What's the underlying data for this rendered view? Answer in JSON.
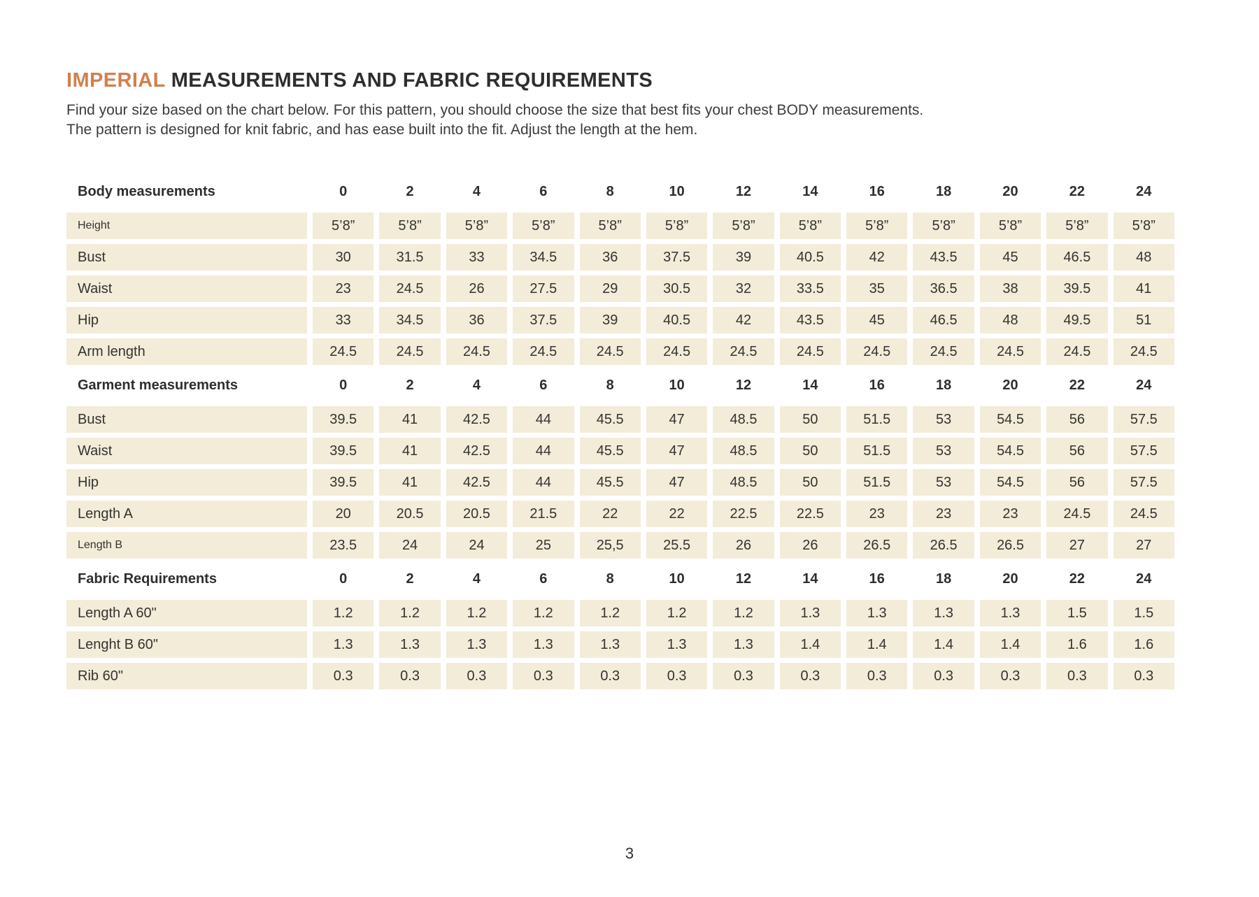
{
  "page": {
    "title_accent": "IMPERIAL",
    "title_rest": " MEASUREMENTS AND FABRIC REQUIREMENTS",
    "intro_line1": "Find your size based on the chart below. For this pattern, you should choose the size that best fits your chest BODY measurements.",
    "intro_line2": "The pattern is designed for knit fabric, and has ease built into the fit. Adjust the length at the hem.",
    "page_number": "3"
  },
  "colors": {
    "accent": "#d1804f",
    "cell_background": "#f3ecd9",
    "text": "#2f2e2c"
  },
  "sizes": [
    "0",
    "2",
    "4",
    "6",
    "8",
    "10",
    "12",
    "14",
    "16",
    "18",
    "20",
    "22",
    "24"
  ],
  "sections": [
    {
      "header": "Body measurements",
      "rows": [
        {
          "label": "Height",
          "small": true,
          "values": [
            "5’8”",
            "5’8”",
            "5’8”",
            "5’8”",
            "5’8”",
            "5’8”",
            "5’8”",
            "5’8”",
            "5’8”",
            "5’8”",
            "5’8”",
            "5’8”",
            "5’8”"
          ]
        },
        {
          "label": "Bust",
          "values": [
            "30",
            "31.5",
            "33",
            "34.5",
            "36",
            "37.5",
            "39",
            "40.5",
            "42",
            "43.5",
            "45",
            "46.5",
            "48"
          ]
        },
        {
          "label": "Waist",
          "values": [
            "23",
            "24.5",
            "26",
            "27.5",
            "29",
            "30.5",
            "32",
            "33.5",
            "35",
            "36.5",
            "38",
            "39.5",
            "41"
          ]
        },
        {
          "label": "Hip",
          "values": [
            "33",
            "34.5",
            "36",
            "37.5",
            "39",
            "40.5",
            "42",
            "43.5",
            "45",
            "46.5",
            "48",
            "49.5",
            "51"
          ]
        },
        {
          "label": "Arm length",
          "values": [
            "24.5",
            "24.5",
            "24.5",
            "24.5",
            "24.5",
            "24.5",
            "24.5",
            "24.5",
            "24.5",
            "24.5",
            "24.5",
            "24.5",
            "24.5"
          ]
        }
      ]
    },
    {
      "header": "Garment measurements",
      "rows": [
        {
          "label": "Bust",
          "values": [
            "39.5",
            "41",
            "42.5",
            "44",
            "45.5",
            "47",
            "48.5",
            "50",
            "51.5",
            "53",
            "54.5",
            "56",
            "57.5"
          ]
        },
        {
          "label": "Waist",
          "values": [
            "39.5",
            "41",
            "42.5",
            "44",
            "45.5",
            "47",
            "48.5",
            "50",
            "51.5",
            "53",
            "54.5",
            "56",
            "57.5"
          ]
        },
        {
          "label": "Hip",
          "values": [
            "39.5",
            "41",
            "42.5",
            "44",
            "45.5",
            "47",
            "48.5",
            "50",
            "51.5",
            "53",
            "54.5",
            "56",
            "57.5"
          ]
        },
        {
          "label": "Length A",
          "values": [
            "20",
            "20.5",
            "20.5",
            "21.5",
            "22",
            "22",
            "22.5",
            "22.5",
            "23",
            "23",
            "23",
            "24.5",
            "24.5"
          ]
        },
        {
          "label": "Length B",
          "small": true,
          "values": [
            "23.5",
            "24",
            "24",
            "25",
            "25,5",
            "25.5",
            "26",
            "26",
            "26.5",
            "26.5",
            "26.5",
            "27",
            "27"
          ]
        }
      ]
    },
    {
      "header": "Fabric Requirements",
      "rows": [
        {
          "label": "Length A 60\"",
          "values": [
            "1.2",
            "1.2",
            "1.2",
            "1.2",
            "1.2",
            "1.2",
            "1.2",
            "1.3",
            "1.3",
            "1.3",
            "1.3",
            "1.5",
            "1.5"
          ]
        },
        {
          "label": "Lenght B 60\"",
          "values": [
            "1.3",
            "1.3",
            "1.3",
            "1.3",
            "1.3",
            "1.3",
            "1.3",
            "1.4",
            "1.4",
            "1.4",
            "1.4",
            "1.6",
            "1.6"
          ]
        },
        {
          "label": "Rib 60\"",
          "values": [
            "0.3",
            "0.3",
            "0.3",
            "0.3",
            "0.3",
            "0.3",
            "0.3",
            "0.3",
            "0.3",
            "0.3",
            "0.3",
            "0.3",
            "0.3"
          ]
        }
      ]
    }
  ]
}
